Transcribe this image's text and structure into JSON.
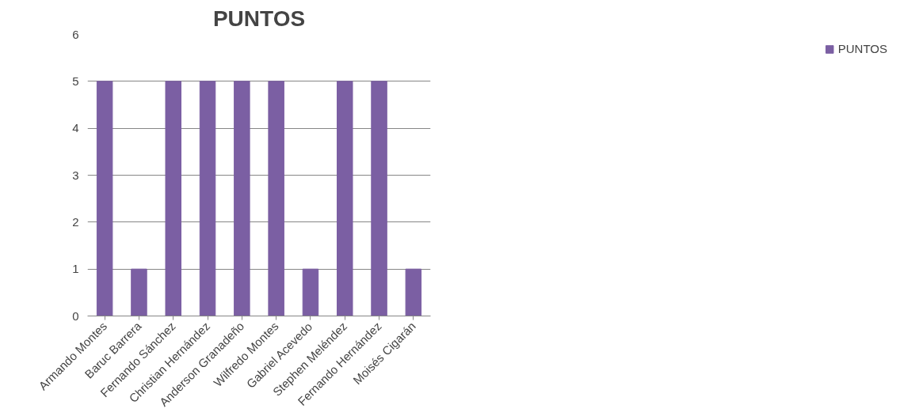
{
  "chart_data": {
    "type": "bar",
    "title": "PUNTOS",
    "categories": [
      "Armando Montes",
      "Baruc Barrera",
      "Fernando Sánchez",
      "Christian Hernández",
      "Anderson Granadeño",
      "Wilfredo Montes",
      "Gabriel Acevedo",
      "Stephen Meléndez",
      "Fernando Hernández",
      "Moisés Cigarán"
    ],
    "series": [
      {
        "name": "PUNTOS",
        "color": "#7b5fa3",
        "values": [
          5,
          1,
          5,
          5,
          5,
          5,
          1,
          5,
          5,
          1
        ]
      }
    ],
    "ylim": [
      0,
      6
    ],
    "yticks": [
      0,
      1,
      2,
      3,
      4,
      5,
      6
    ],
    "grid": "y",
    "legend": "right"
  }
}
